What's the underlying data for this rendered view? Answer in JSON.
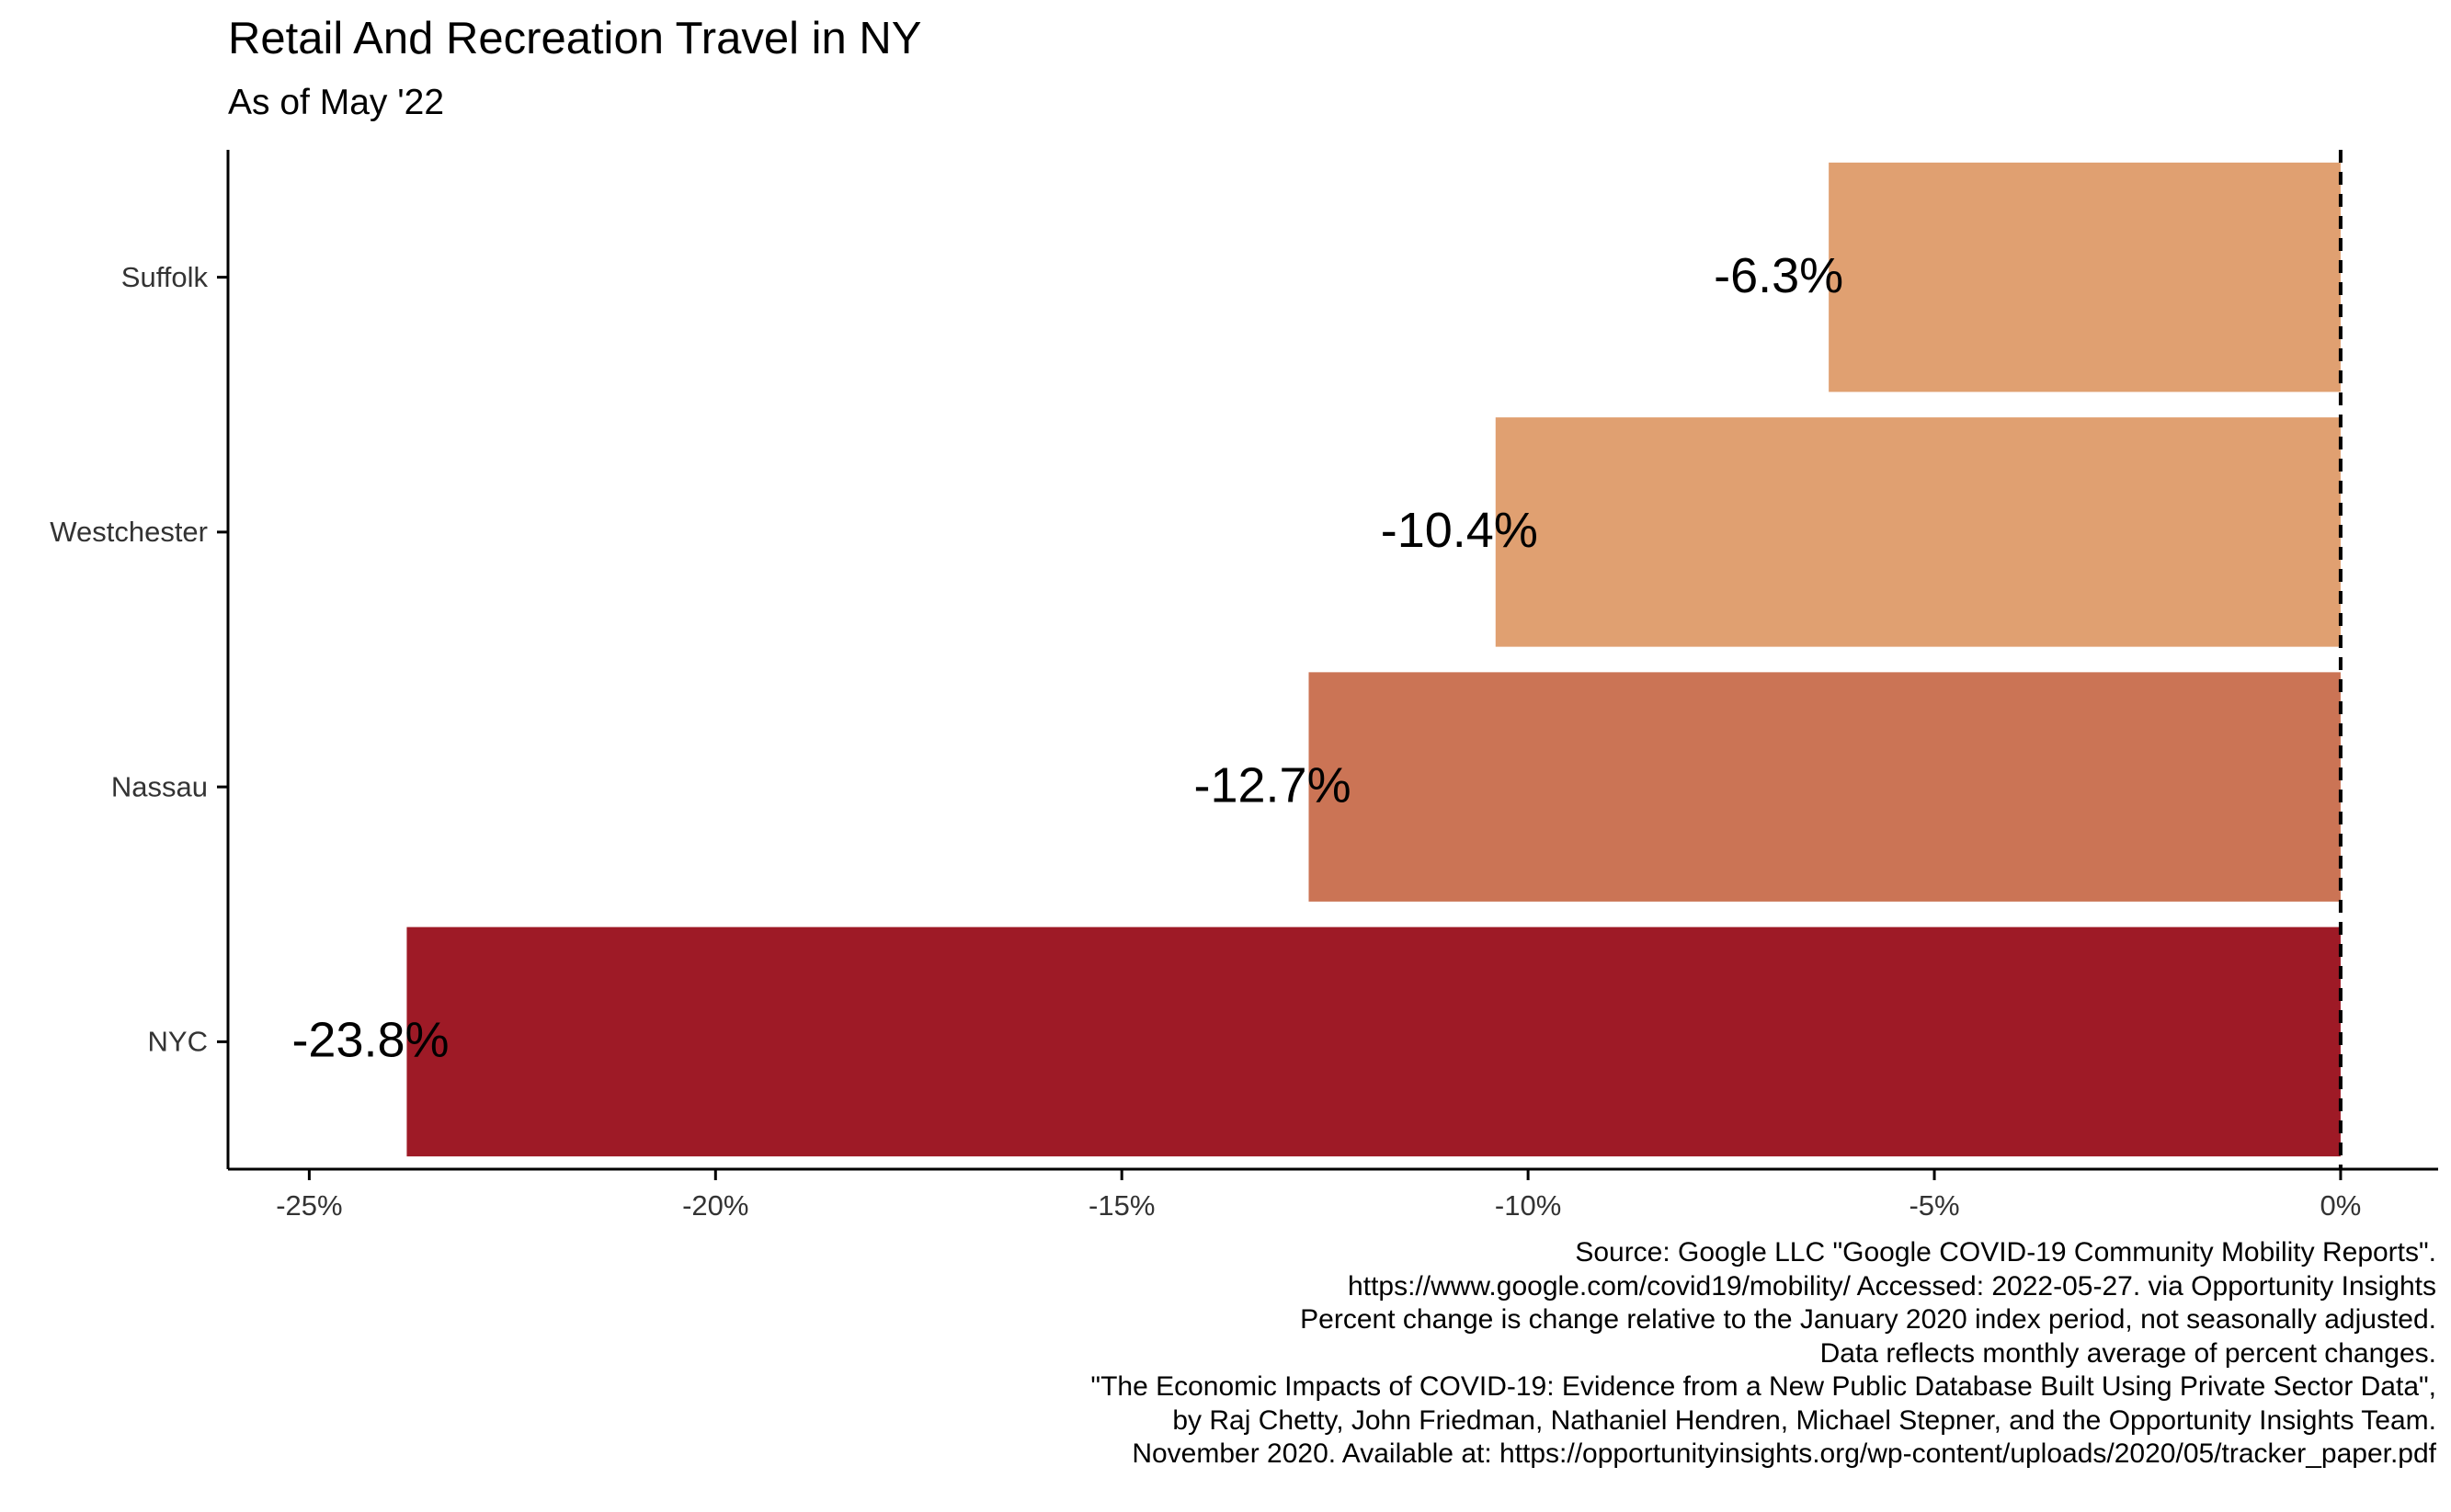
{
  "chart_data": {
    "type": "bar",
    "orientation": "horizontal",
    "title": "Retail And Recreation Travel in NY",
    "subtitle": "As of May '22",
    "xlabel": "",
    "ylabel": "",
    "categories": [
      "Suffolk",
      "Westchester",
      "Nassau",
      "NYC"
    ],
    "values": [
      -6.3,
      -10.4,
      -12.7,
      -23.8
    ],
    "data_labels": [
      "-6.3%",
      "-10.4%",
      "-12.7%",
      "-23.8%"
    ],
    "bar_colors": [
      "#e0a071",
      "#e0a071",
      "#cb7455",
      "#9e1a26"
    ],
    "xlim": [
      -26,
      1.2
    ],
    "x_ticks": [
      -25,
      -20,
      -15,
      -10,
      -5,
      0
    ],
    "x_tick_labels": [
      "-25%",
      "-20%",
      "-15%",
      "-10%",
      "-5%",
      "0%"
    ],
    "reference_line": {
      "x": 0,
      "style": "dashed"
    },
    "grid": false,
    "legend": "none"
  },
  "caption_lines": [
    "Source: Google LLC \"Google COVID-19 Community Mobility Reports\".",
    "https://www.google.com/covid19/mobility/ Accessed: 2022-05-27. via Opportunity Insights",
    "Percent change is change relative to the January 2020 index period, not seasonally adjusted.",
    "Data reflects monthly average of percent changes.",
    "\"The Economic Impacts of COVID-19: Evidence from a New Public Database Built Using Private Sector Data\",",
    "by Raj Chetty, John Friedman, Nathaniel Hendren, Michael Stepner, and the Opportunity Insights Team.",
    "November 2020. Available at: https://opportunityinsights.org/wp-content/uploads/2020/05/tracker_paper.pdf"
  ]
}
